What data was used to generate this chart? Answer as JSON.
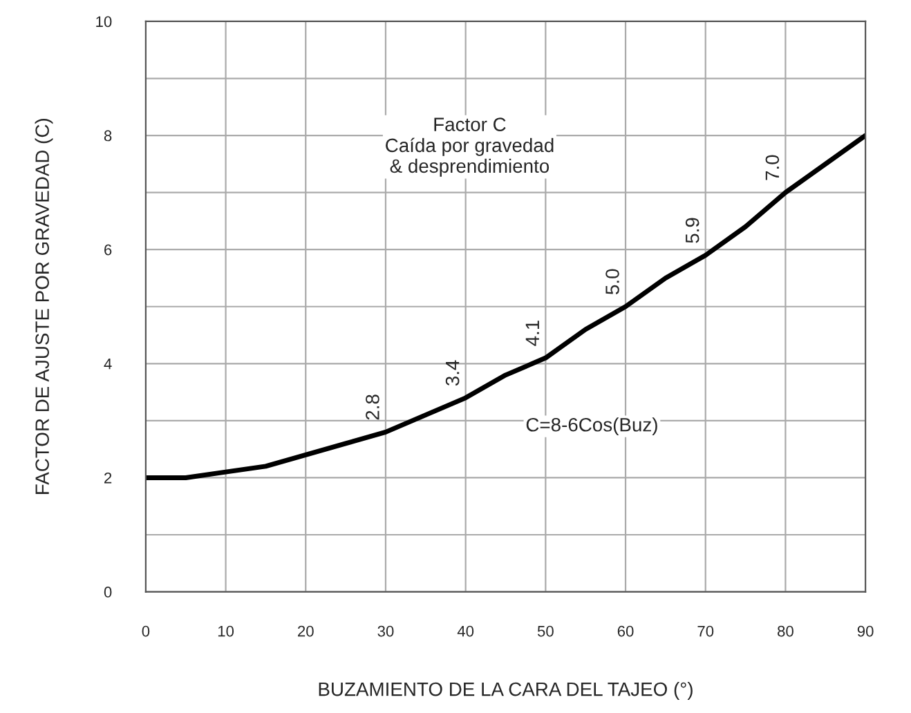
{
  "chart_data": {
    "type": "line",
    "xlabel": "BUZAMIENTO DE LA CARA DEL TAJEO (°)",
    "ylabel": "FACTOR DE AJUSTE POR GRAVEDAD (C)",
    "x": [
      0,
      5,
      10,
      15,
      20,
      25,
      30,
      35,
      40,
      45,
      50,
      55,
      60,
      65,
      70,
      75,
      80,
      85,
      90
    ],
    "series": [
      {
        "color": "#000000",
        "values": [
          2.0,
          2.0,
          2.1,
          2.2,
          2.4,
          2.6,
          2.8,
          3.1,
          3.4,
          3.8,
          4.1,
          4.6,
          5.0,
          5.5,
          5.9,
          6.4,
          7.0,
          7.5,
          8.0
        ],
        "value_labels": [
          null,
          null,
          null,
          null,
          null,
          null,
          "2.8",
          null,
          "3.4",
          null,
          "4.1",
          null,
          "5.0",
          null,
          "5.9",
          null,
          "7.0",
          null,
          null
        ]
      }
    ],
    "xlim": [
      0,
      90
    ],
    "xticks": [
      0,
      10,
      20,
      30,
      40,
      50,
      60,
      70,
      80,
      90
    ],
    "ylim": [
      0,
      10
    ],
    "yticks": [
      0,
      {
        "value": 1,
        "label": null
      },
      2,
      {
        "value": 3,
        "label": null
      },
      4,
      {
        "value": 5,
        "label": null
      },
      6,
      {
        "value": 7,
        "label": null
      },
      8,
      {
        "value": 9,
        "label": null
      },
      10
    ],
    "annotations": [
      "Factor C\nCaída por gravedad\n& desprendimiento",
      "C=8-6Cos(Buz)"
    ],
    "grid": true,
    "marker": "none",
    "line_style": "solid"
  }
}
